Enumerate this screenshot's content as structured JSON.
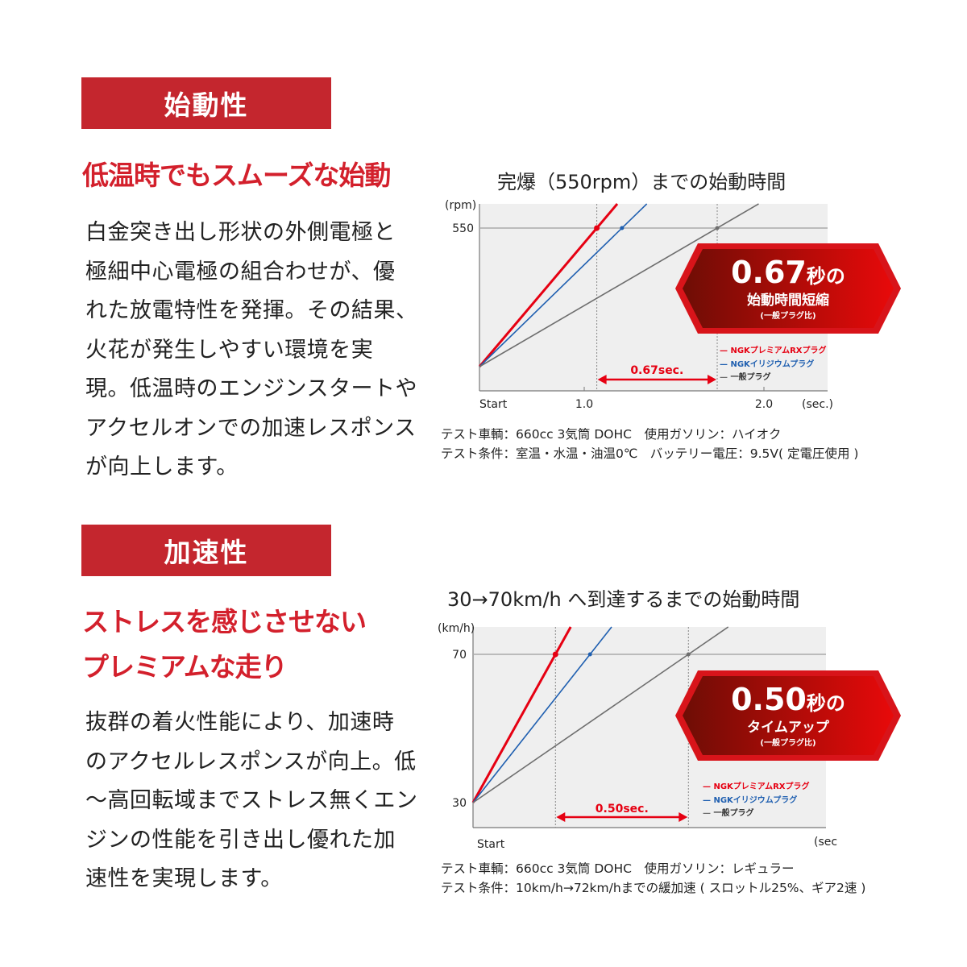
{
  "colors": {
    "accent": "#c4262e",
    "premium": "#e60012",
    "iridium": "#1f5fb0",
    "standard": "#6e6e6e",
    "plot_bg": "#efefef"
  },
  "section1": {
    "label": "始動性",
    "heading": "低温時でもスムーズな始動",
    "body_lines": [
      "白金突き出し形状の外側電極と",
      "極細中心電極の組合わせが、優",
      "れた放電特性を発揮。その結果、",
      "火花が発生しやすい環境を実",
      "現。低温時のエンジンスタートや",
      "アクセルオンでの加速レスポンス",
      "が向上します。"
    ],
    "notes": [
      "テスト車輌：660cc 3気筒 DOHC　使用ガソリン：ハイオク",
      "テスト条件：室温・水温・油温0℃　バッテリー電圧：9.5V( 定電圧使用 )"
    ]
  },
  "section2": {
    "label": "加速性",
    "heading_lines": [
      "ストレスを感じさせない",
      "プレミアムな走り"
    ],
    "body_lines": [
      "抜群の着火性能により、加速時",
      "のアクセルレスポンスが向上。低",
      "〜高回転域までストレス無くエン",
      "ジンの性能を引き出し優れた加",
      "速性を実現します。"
    ],
    "notes": [
      "テスト車輌：660cc 3気筒 DOHC　使用ガソリン：レギュラー",
      "テスト条件：10km/h→72km/hまでの緩加速 ( スロットル25%、ギア2速 )"
    ]
  },
  "chart_data": [
    {
      "type": "line",
      "title": "完爆（550rpm）までの始動時間",
      "ylabel": "(rpm)",
      "xlabel": "(sec.)",
      "x_ticks": [
        "Start",
        "1.0",
        "2.0"
      ],
      "y_ticks": [
        "550"
      ],
      "target": 550,
      "series": [
        {
          "name": "NGKプレミアムRXプラグ",
          "color": "#e60012",
          "reach_time": 1.07
        },
        {
          "name": "NGKイリジウムプラグ",
          "color": "#1f5fb0",
          "reach_time": 1.21
        },
        {
          "name": "一般プラグ",
          "color": "#6e6e6e",
          "reach_time": 1.74
        }
      ],
      "difference_label": "0.67sec.",
      "badge": {
        "big": "0.67",
        "unit": "秒の",
        "line2": "始動時間短縮",
        "line3": "(一般プラグ比)"
      },
      "legend": "bottom-right",
      "grid": false
    },
    {
      "type": "line",
      "title": "30→70km/h へ到達するまでの始動時間",
      "ylabel": "(km/h)",
      "xlabel": "(sec.)",
      "x_ticks": [
        "Start"
      ],
      "y_ticks": [
        "30",
        "70"
      ],
      "y_start": 30,
      "target": 70,
      "series": [
        {
          "name": "NGKプレミアムRXプラグ",
          "color": "#e60012",
          "reach_time": 0.31
        },
        {
          "name": "NGKイリジウムプラグ",
          "color": "#1f5fb0",
          "reach_time": 0.44
        },
        {
          "name": "一般プラグ",
          "color": "#6e6e6e",
          "reach_time": 0.81
        }
      ],
      "difference_label": "0.50sec.",
      "badge": {
        "big": "0.50",
        "unit": "秒の",
        "line2": "タイムアップ",
        "line3": "(一般プラグ比)"
      },
      "legend": "bottom-right",
      "grid": false
    }
  ]
}
